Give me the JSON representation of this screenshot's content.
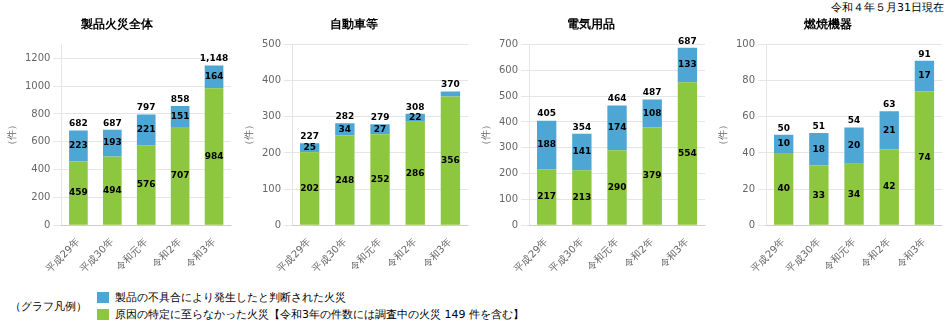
{
  "chart_data": [
    {
      "type": "bar",
      "title": "製品火災全体",
      "ylabel": "（件）",
      "stacked": true,
      "grid": true,
      "data_labels": true,
      "legend": "lower left",
      "legend_title": "（グラフ凡例）",
      "categories": [
        "平成29年",
        "平成30年",
        "令和元年",
        "令和2年",
        "令和3年"
      ],
      "series": [
        {
          "name": "原因の特定に至らなかった火災【令和3年の件数には調査中の火災 149 件を含む】",
          "color": "#8dc63f",
          "values": [
            459,
            494,
            576,
            707,
            984
          ]
        },
        {
          "name": "製品の不具合により発生したと判断された火災",
          "color": "#4da6d4",
          "values": [
            223,
            193,
            221,
            151,
            164
          ]
        }
      ],
      "totals": [
        682,
        687,
        797,
        858,
        1148
      ],
      "total_labels": [
        "682",
        "687",
        "797",
        "858",
        "1,148"
      ],
      "ylim": [
        0,
        1300
      ],
      "yticks": [
        0,
        200,
        400,
        600,
        800,
        1000,
        1200
      ]
    },
    {
      "type": "bar",
      "title": "自動車等",
      "ylabel": "（件）",
      "stacked": true,
      "grid": true,
      "data_labels": true,
      "categories": [
        "平成29年",
        "平成30年",
        "令和元年",
        "令和2年",
        "令和3年"
      ],
      "series": [
        {
          "name": "原因の特定に至らなかった火災【令和3年の件数には調査中の火災 149 件を含む】",
          "color": "#8dc63f",
          "values": [
            202,
            248,
            252,
            286,
            356
          ]
        },
        {
          "name": "製品の不具合により発生したと判断された火災",
          "color": "#4da6d4",
          "values": [
            25,
            34,
            27,
            22,
            14
          ],
          "value_labels": [
            "25",
            "34",
            "27",
            "22",
            null
          ]
        }
      ],
      "totals": [
        227,
        282,
        279,
        308,
        370
      ],
      "total_labels": [
        "227",
        "282",
        "279",
        "308",
        "370"
      ],
      "ylim": [
        0,
        500
      ],
      "yticks": [
        0,
        100,
        200,
        300,
        400,
        500
      ]
    },
    {
      "type": "bar",
      "title": "電気用品",
      "ylabel": "（件）",
      "stacked": true,
      "grid": true,
      "data_labels": true,
      "categories": [
        "平成29年",
        "平成30年",
        "令和元年",
        "令和2年",
        "令和3年"
      ],
      "series": [
        {
          "name": "原因の特定に至らなかった火災【令和3年の件数には調査中の火災 149 件を含む】",
          "color": "#8dc63f",
          "values": [
            217,
            213,
            290,
            379,
            554
          ]
        },
        {
          "name": "製品の不具合により発生したと判断された火災",
          "color": "#4da6d4",
          "values": [
            188,
            141,
            174,
            108,
            133
          ]
        }
      ],
      "totals": [
        405,
        354,
        464,
        487,
        687
      ],
      "total_labels": [
        "405",
        "354",
        "464",
        "487",
        "687"
      ],
      "ylim": [
        0,
        700
      ],
      "yticks": [
        0,
        100,
        200,
        300,
        400,
        500,
        600,
        700
      ]
    },
    {
      "type": "bar",
      "title": "燃焼機器",
      "ylabel": "（件）",
      "stacked": true,
      "grid": true,
      "data_labels": true,
      "annotations": [
        "令和４年５月31日現在"
      ],
      "categories": [
        "平成29年",
        "平成30年",
        "令和元年",
        "令和2年",
        "令和3年"
      ],
      "series": [
        {
          "name": "原因の特定に至らなかった火災【令和3年の件数には調査中の火災 149 件を含む】",
          "color": "#8dc63f",
          "values": [
            40,
            33,
            34,
            42,
            74
          ]
        },
        {
          "name": "製品の不具合により発生したと判断された火災",
          "color": "#4da6d4",
          "values": [
            10,
            18,
            20,
            21,
            17
          ]
        }
      ],
      "totals": [
        50,
        51,
        54,
        63,
        91
      ],
      "total_labels": [
        "50",
        "51",
        "54",
        "63",
        "91"
      ],
      "ylim": [
        0,
        100
      ],
      "yticks": [
        0,
        20,
        40,
        60,
        80,
        100
      ]
    }
  ]
}
